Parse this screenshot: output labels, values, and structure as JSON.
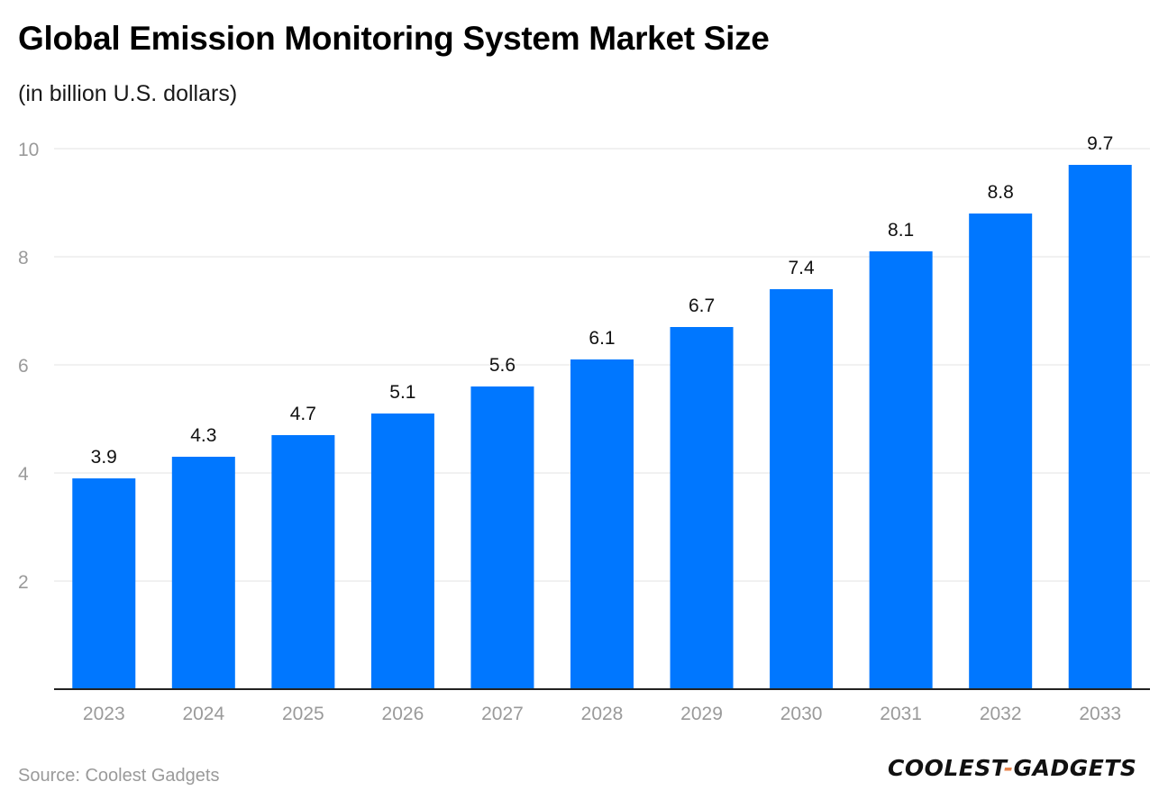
{
  "title": "Global Emission Monitoring System Market Size",
  "subtitle": "(in billion U.S. dollars)",
  "source": "Source: Coolest Gadgets",
  "logo": {
    "left": "COOLEST",
    "separator": "-",
    "right": "GADGETS"
  },
  "colors": {
    "bar": "#0077ff",
    "grid": "#e3e3e3",
    "axis_text": "#9a9a9a",
    "label_text": "#111111",
    "logo_accent": "#e8834a"
  },
  "chart_data": {
    "type": "bar",
    "categories": [
      "2023",
      "2024",
      "2025",
      "2026",
      "2027",
      "2028",
      "2029",
      "2030",
      "2031",
      "2032",
      "2033"
    ],
    "values": [
      3.9,
      4.3,
      4.7,
      5.1,
      5.6,
      6.1,
      6.7,
      7.4,
      8.1,
      8.8,
      9.7
    ],
    "data_labels": [
      "3.9",
      "4.3",
      "4.7",
      "5.1",
      "5.6",
      "6.1",
      "6.7",
      "7.4",
      "8.1",
      "8.8",
      "9.7"
    ],
    "title": "Global Emission Monitoring System Market Size",
    "subtitle": "(in billion U.S. dollars)",
    "xlabel": "",
    "ylabel": "",
    "ylim": [
      0,
      10
    ],
    "yticks": [
      2,
      4,
      6,
      8,
      10
    ],
    "ytick_labels": [
      "2",
      "4",
      "6",
      "8",
      "10"
    ],
    "grid": true,
    "legend": "none"
  }
}
